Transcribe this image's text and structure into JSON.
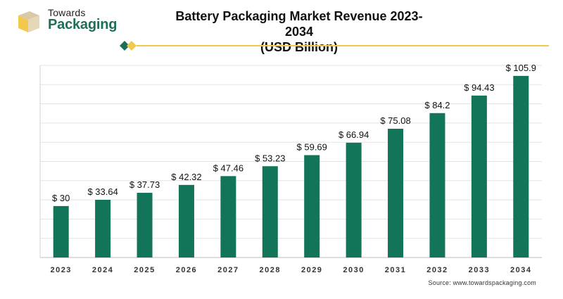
{
  "logo": {
    "line1": "Towards",
    "line2": "Packaging"
  },
  "header": {
    "title": "Battery Packaging Market Revenue 2023-2034",
    "subtitle": "(USD Billion)"
  },
  "source": "Source: www.towardspackaging.com",
  "colors": {
    "bar": "#127559",
    "brand_green": "#1f6e5a",
    "accent_yellow": "#f2c94c",
    "grid": "#e3e3e3"
  },
  "chart_data": {
    "type": "bar",
    "title": "Battery Packaging Market Revenue 2023-2034",
    "subtitle": "(USD Billion)",
    "xlabel": "",
    "ylabel": "",
    "categories": [
      "2023",
      "2024",
      "2025",
      "2026",
      "2027",
      "2028",
      "2029",
      "2030",
      "2031",
      "2032",
      "2033",
      "2034"
    ],
    "values": [
      30,
      33.64,
      37.73,
      42.32,
      47.46,
      53.23,
      59.69,
      66.94,
      75.08,
      84.2,
      94.43,
      105.9
    ],
    "data_labels": [
      "$ 30",
      "$ 33.64",
      "$ 37.73",
      "$ 42.32",
      "$ 47.46",
      "$ 53.23",
      "$ 59.69",
      "$ 66.94",
      "$ 75.08",
      "$ 84.2",
      "$ 94.43",
      "$ 105.9"
    ],
    "ylim": [
      0,
      112
    ],
    "grid": true,
    "legend": "none"
  }
}
